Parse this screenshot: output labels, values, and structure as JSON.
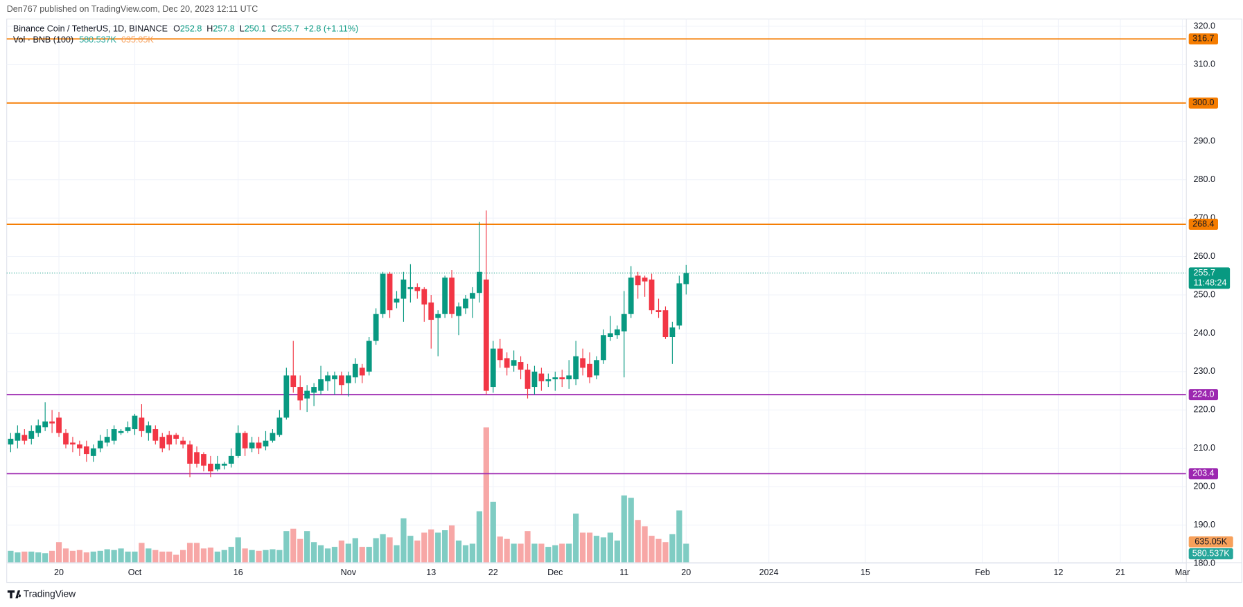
{
  "header": {
    "published": "Den767 published on TradingView.com, Dec 20, 2023 12:11 UTC",
    "symbol": "Binance Coin / TetherUS, 1D, BINANCE",
    "ohlc_keys": [
      "O",
      "H",
      "L",
      "C"
    ],
    "change": "+2.8 (+1.11%)",
    "volume_title": "Vol · BNB (100)",
    "footer": "TradingView"
  },
  "chart_data": {
    "type": "candlestick",
    "categories": [
      null,
      null,
      null,
      null,
      null,
      null,
      null,
      "20",
      null,
      null,
      null,
      null,
      null,
      null,
      null,
      null,
      null,
      null,
      "Oct",
      null,
      null,
      null,
      null,
      null,
      null,
      null,
      null,
      null,
      null,
      null,
      null,
      null,
      null,
      "16",
      null,
      null,
      null,
      null,
      null,
      null,
      null,
      null,
      null,
      null,
      null,
      null,
      null,
      null,
      null,
      "Nov",
      null,
      null,
      null,
      null,
      null,
      null,
      null,
      null,
      null,
      null,
      null,
      "13",
      null,
      null,
      null,
      null,
      null,
      null,
      null,
      null,
      "22",
      null,
      null,
      null,
      null,
      null,
      null,
      null,
      null,
      "Dec",
      null,
      null,
      null,
      null,
      null,
      null,
      null,
      null,
      null,
      "11",
      null,
      null,
      null,
      null,
      null,
      null,
      null,
      null,
      "20",
      null,
      null,
      null,
      null,
      null,
      null,
      null,
      null,
      null,
      null,
      null,
      "2024",
      null,
      null,
      null,
      null,
      null,
      null,
      null,
      null,
      null,
      null,
      null,
      null,
      null,
      "15",
      null,
      null,
      null,
      null,
      null,
      null,
      null,
      null,
      null,
      null,
      null,
      null,
      null,
      null,
      null,
      null,
      "Feb",
      null,
      null,
      null,
      null,
      null,
      null,
      null,
      null,
      null,
      null,
      "12",
      null,
      null,
      null,
      null,
      null,
      null,
      null,
      null,
      "21",
      null,
      null,
      null,
      null,
      null,
      null,
      null,
      null,
      "Mar"
    ],
    "open": [
      211,
      212,
      213.5,
      212.5,
      214,
      215.5,
      217,
      218,
      214,
      211.5,
      211,
      210.5,
      208,
      210,
      211.5,
      212,
      214,
      214.5,
      215,
      218,
      214,
      215,
      213,
      213.5,
      213.5,
      212,
      211,
      209,
      208.5,
      206,
      204.5,
      205.5,
      206,
      208,
      214,
      210,
      211.5,
      210.5,
      212,
      213.5,
      218,
      229,
      226,
      223,
      224.5,
      225,
      227.5,
      228,
      229,
      227,
      228.5,
      231,
      230,
      238,
      245,
      255.5,
      248,
      249,
      251.5,
      252,
      251.5,
      248,
      244,
      245,
      254.5,
      244.5,
      246.5,
      249,
      250.5,
      254,
      226,
      236,
      233.5,
      231.5,
      232.5,
      230.5,
      226,
      229.5,
      227.5,
      228,
      228.5,
      228,
      228,
      233.5,
      232,
      229,
      233,
      239,
      239.5,
      240.5,
      245,
      255,
      254.5,
      254,
      246,
      246,
      239,
      242,
      252.8,
      null,
      null,
      null,
      null,
      null,
      null,
      null,
      null,
      null,
      null,
      null,
      null,
      null,
      null,
      null,
      null,
      null,
      null,
      null,
      null,
      null,
      null,
      null,
      null,
      null,
      null,
      null,
      null,
      null,
      null,
      null,
      null,
      null,
      null,
      null,
      null,
      null,
      null,
      null,
      null,
      null,
      null,
      null,
      null,
      null,
      null,
      null,
      null,
      null,
      null,
      null,
      null,
      null,
      null,
      null,
      null,
      null,
      null,
      null,
      null,
      null,
      null,
      null,
      null,
      null,
      null,
      null,
      null,
      null,
      null,
      null,
      null
    ],
    "high": [
      214,
      216,
      215,
      216,
      217.5,
      222,
      220,
      219.5,
      215,
      213,
      212,
      212,
      211,
      213.5,
      215,
      216,
      215,
      217,
      219,
      221.5,
      217,
      216,
      214,
      214.5,
      214,
      213,
      212,
      210.5,
      209,
      208,
      208,
      206.5,
      210,
      216,
      214.5,
      213,
      213,
      214.5,
      215,
      220,
      231,
      238,
      229,
      226.5,
      227,
      231.5,
      230,
      230,
      230,
      230,
      233.5,
      232,
      239,
      246.5,
      256,
      256,
      251,
      256,
      258,
      253,
      252,
      250,
      246,
      255,
      256.5,
      248,
      250,
      252,
      269,
      272,
      238,
      238.5,
      235,
      235.5,
      234,
      232,
      231.5,
      231,
      229.5,
      230,
      230.5,
      233,
      238,
      236,
      235,
      234,
      241,
      244.5,
      242,
      251,
      257.5,
      256,
      255,
      255.5,
      249,
      247,
      243,
      255,
      257.8,
      null,
      null,
      null,
      null,
      null,
      null,
      null,
      null,
      null,
      null,
      null,
      null,
      null,
      null,
      null,
      null,
      null,
      null,
      null,
      null,
      null,
      null,
      null,
      null,
      null,
      null,
      null,
      null,
      null,
      null,
      null,
      null,
      null,
      null,
      null,
      null,
      null,
      null,
      null,
      null,
      null,
      null,
      null,
      null,
      null,
      null,
      null,
      null,
      null,
      null,
      null,
      null,
      null,
      null,
      null,
      null,
      null,
      null,
      null,
      null,
      null,
      null,
      null,
      null,
      null,
      null,
      null,
      null,
      null,
      null,
      null,
      null
    ],
    "low": [
      209,
      210,
      211,
      211,
      213,
      214.5,
      214,
      213,
      210,
      209,
      208,
      206.5,
      206.5,
      209,
      210.5,
      211,
      213.5,
      214,
      213.5,
      213,
      212,
      211,
      209,
      209.5,
      211,
      210,
      202.5,
      205,
      204,
      202.5,
      204,
      204.5,
      205,
      207.5,
      208,
      209,
      208.5,
      209.5,
      211.5,
      213,
      217.5,
      224.5,
      220,
      219.5,
      221,
      224,
      225,
      224,
      224,
      223.5,
      227,
      227,
      229,
      237,
      244,
      244,
      246.5,
      243,
      248,
      249,
      243,
      236,
      234,
      244,
      244,
      239.5,
      245,
      244,
      248,
      224,
      224.5,
      231,
      229,
      230,
      228,
      223,
      224,
      225,
      226,
      225,
      226,
      225.5,
      226.5,
      229,
      227,
      228,
      232,
      238,
      238.5,
      228.5,
      244,
      249,
      249.5,
      245,
      244,
      238.5,
      232,
      241,
      250.1,
      null,
      null,
      null,
      null,
      null,
      null,
      null,
      null,
      null,
      null,
      null,
      null,
      null,
      null,
      null,
      null,
      null,
      null,
      null,
      null,
      null,
      null,
      null,
      null,
      null,
      null,
      null,
      null,
      null,
      null,
      null,
      null,
      null,
      null,
      null,
      null,
      null,
      null,
      null,
      null,
      null,
      null,
      null,
      null,
      null,
      null,
      null,
      null,
      null,
      null,
      null,
      null,
      null,
      null,
      null,
      null,
      null,
      null,
      null,
      null,
      null,
      null,
      null,
      null,
      null,
      null,
      null,
      null,
      null,
      null,
      null,
      null
    ],
    "close": [
      212.5,
      214,
      212,
      214.5,
      216,
      217,
      216.5,
      214,
      211,
      211,
      210,
      208.5,
      210,
      212,
      213,
      215,
      214.5,
      215.5,
      218.5,
      214.5,
      216,
      212,
      210,
      211,
      212.5,
      211,
      206,
      206,
      205.5,
      204,
      206,
      206,
      208,
      214,
      210,
      211.5,
      210,
      212,
      214,
      218,
      229,
      226,
      222.5,
      225,
      226,
      228,
      229,
      229,
      226.5,
      229,
      232,
      229,
      238,
      245,
      255.5,
      246,
      249,
      254,
      252,
      251,
      247.5,
      243.5,
      245,
      254.5,
      245,
      247,
      249,
      250.5,
      256,
      225,
      236,
      233,
      231,
      233,
      230.5,
      225.5,
      230,
      227.5,
      228,
      228.5,
      228,
      229,
      234,
      231,
      228.5,
      233,
      239.5,
      240,
      241,
      245,
      254.5,
      252.5,
      253.5,
      246,
      245.5,
      239,
      241.5,
      253,
      255.7,
      null,
      null,
      null,
      null,
      null,
      null,
      null,
      null,
      null,
      null,
      null,
      null,
      null,
      null,
      null,
      null,
      null,
      null,
      null,
      null,
      null,
      null,
      null,
      null,
      null,
      null,
      null,
      null,
      null,
      null,
      null,
      null,
      null,
      null,
      null,
      null,
      null,
      null,
      null,
      null,
      null,
      null,
      null,
      null,
      null,
      null,
      null,
      null,
      null,
      null,
      null,
      null,
      null,
      null,
      null,
      null,
      null,
      null,
      null,
      null,
      null,
      null,
      null,
      null,
      null,
      null,
      null,
      null,
      null,
      null,
      null,
      null
    ],
    "volume": [
      363000,
      314000,
      339000,
      339000,
      314000,
      290000,
      363000,
      629000,
      435000,
      363000,
      387000,
      314000,
      339000,
      363000,
      411000,
      387000,
      435000,
      339000,
      339000,
      605000,
      435000,
      387000,
      339000,
      339000,
      242000,
      387000,
      605000,
      605000,
      435000,
      460000,
      339000,
      387000,
      484000,
      774000,
      435000,
      387000,
      363000,
      387000,
      411000,
      387000,
      968000,
      1040000,
      726000,
      968000,
      629000,
      532000,
      435000,
      484000,
      677000,
      581000,
      750000,
      484000,
      484000,
      750000,
      871000,
      774000,
      532000,
      1355000,
      822000,
      677000,
      919000,
      1016000,
      919000,
      992000,
      1137000,
      677000,
      532000,
      581000,
      1572000,
      4136000,
      1863000,
      798000,
      726000,
      581000,
      581000,
      968000,
      581000,
      581000,
      484000,
      532000,
      581000,
      581000,
      1500000,
      919000,
      919000,
      822000,
      774000,
      919000,
      677000,
      2056000,
      1984000,
      1306000,
      1113000,
      822000,
      726000,
      629000,
      871000,
      1597000,
      580537,
      null,
      null,
      null,
      null,
      null,
      null,
      null,
      null,
      null,
      null,
      null,
      null,
      null,
      null,
      null,
      null,
      null,
      null,
      null,
      null,
      null,
      null,
      null,
      null,
      null,
      null,
      null,
      null,
      null,
      null,
      null,
      null,
      null,
      null,
      null,
      null,
      null,
      null,
      null,
      null,
      null,
      null,
      null,
      null,
      null,
      null,
      null,
      null,
      null,
      null,
      null,
      null,
      null,
      null,
      null,
      null,
      null,
      null,
      null,
      null,
      null,
      null,
      null,
      null,
      null,
      null,
      null,
      null,
      null,
      null,
      null,
      null
    ],
    "up_color": "#089981",
    "down_color": "#f23645",
    "volume_up_color": "#7fccc3",
    "volume_down_color": "#f7a7a6",
    "volume_last": {
      "value": 580537,
      "label": "580.537K",
      "color": "#26a69a"
    },
    "volume_ma": {
      "value": 635050,
      "label": "635.05K",
      "color": "#f7a05a"
    },
    "ylim": [
      180.2,
      321.9
    ],
    "yticks": [
      {
        "value": 180,
        "label": "180.0"
      },
      {
        "value": 190,
        "label": "190.0"
      },
      {
        "value": 200,
        "label": "200.0"
      },
      {
        "value": 210,
        "label": "210.0"
      },
      {
        "value": 220,
        "label": "220.0"
      },
      {
        "value": 230,
        "label": "230.0"
      },
      {
        "value": 240,
        "label": "240.0"
      },
      {
        "value": 250,
        "label": "250.0"
      },
      {
        "value": 260,
        "label": "260.0"
      },
      {
        "value": 270,
        "label": "270.0"
      },
      {
        "value": 280,
        "label": "280.0"
      },
      {
        "value": 290,
        "label": "290.0"
      },
      {
        "value": 300,
        "label": "300.0"
      },
      {
        "value": 310,
        "label": "310.0"
      },
      {
        "value": 320,
        "label": "320.0"
      }
    ],
    "grid": true,
    "hlines": [
      {
        "value": 316.7,
        "label": "316.7",
        "color": "#f57c00"
      },
      {
        "value": 300,
        "label": "300.0",
        "color": "#f57c00"
      },
      {
        "value": 268.4,
        "label": "268.4",
        "color": "#f57c00"
      },
      {
        "value": 224,
        "label": "224.0",
        "color": "#9c27b0"
      },
      {
        "value": 203.4,
        "label": "203.4",
        "color": "#9c27b0"
      }
    ],
    "last_price": {
      "value": 255.7,
      "label": "255.7",
      "countdown": "11:48:24",
      "color": "#089981"
    }
  }
}
